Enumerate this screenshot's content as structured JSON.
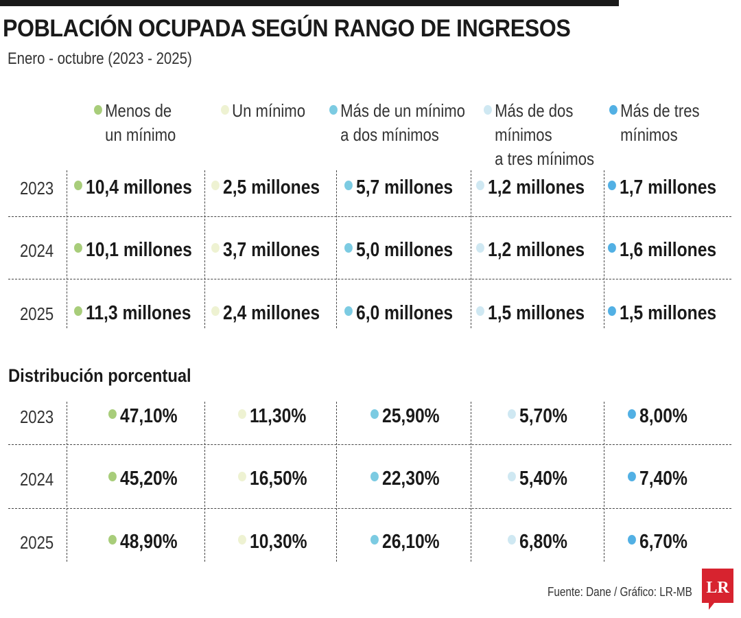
{
  "title": "POBLACIÓN OCUPADA SEGÚN RANGO DE INGRESOS",
  "subtitle": "Enero - octubre (2023 - 2025)",
  "section_title": "Distribución porcentual",
  "source": "Fuente: Dane / Gráfico: LR-MB",
  "logo": {
    "text": "LR",
    "color": "#d7232f"
  },
  "colors": [
    "#a8cd7a",
    "#eef2d2",
    "#7ccbe2",
    "#cfe8f2",
    "#52b0e4"
  ],
  "icons": {
    "legend": "bullet-dot-icon",
    "logo": "lr-logo-icon"
  },
  "chart_data": {
    "type": "table",
    "categories": [
      "Menos de\nun mínimo",
      "Un mínimo",
      "Más de un mínimo\na dos mínimos",
      "Más de dos\nmínimos\na tres mínimos",
      "Más de tres\nmínimos"
    ],
    "years": [
      "2023",
      "2024",
      "2025"
    ],
    "absolute": [
      [
        "10,4 millones",
        "2,5 millones",
        "5,7 millones",
        "1,2 millones",
        "1,7 millones"
      ],
      [
        "10,1 millones",
        "3,7 millones",
        "5,0 millones",
        "1,2 millones",
        "1,6 millones"
      ],
      [
        "11,3 millones",
        "2,4 millones",
        "6,0 millones",
        "1,5 millones",
        "1,5 millones"
      ]
    ],
    "percent": [
      [
        "47,10%",
        "11,30%",
        "25,90%",
        "5,70%",
        "8,00%"
      ],
      [
        "45,20%",
        "16,50%",
        "22,30%",
        "5,40%",
        "7,40%"
      ],
      [
        "48,90%",
        "10,30%",
        "26,10%",
        "6,80%",
        "6,70%"
      ]
    ]
  }
}
